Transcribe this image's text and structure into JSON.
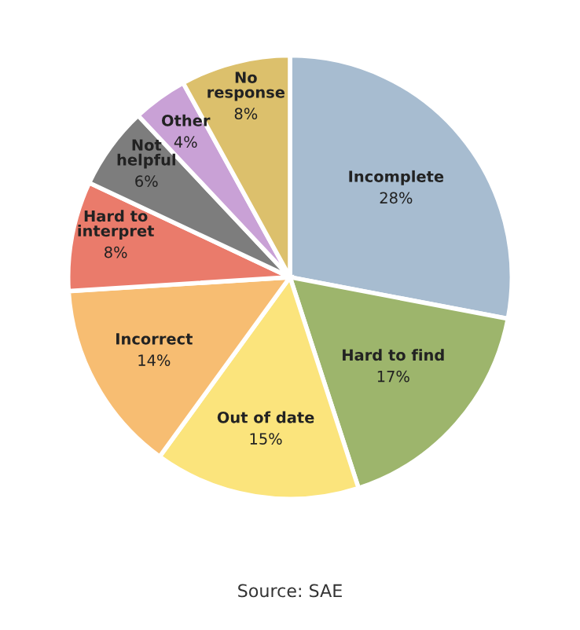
{
  "chart_data": {
    "type": "pie",
    "categories": [
      "Incomplete",
      "Hard to find",
      "Out of date",
      "Incorrect",
      "Hard to\ninterpret",
      "Not\nhelpful",
      "Other",
      "No\nresponse"
    ],
    "values": [
      28,
      17,
      15,
      14,
      8,
      6,
      4,
      8
    ],
    "value_labels": [
      "28%",
      "17%",
      "15%",
      "14%",
      "8%",
      "6%",
      "4%",
      "8%"
    ],
    "colors": [
      "#a7bcd0",
      "#9db56c",
      "#fbe47c",
      "#f7bd72",
      "#ea7b6b",
      "#7d7d7d",
      "#c9a1d6",
      "#dcc06c"
    ],
    "annotations": [
      "Source: SAE"
    ]
  }
}
